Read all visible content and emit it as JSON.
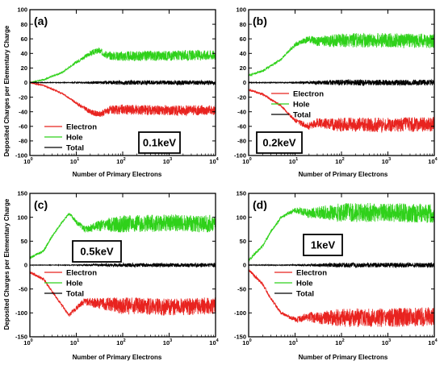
{
  "figure": {
    "ylabel": "Deposited Charges per Elementary Charge",
    "xlabel": "Number of Primary Electrons"
  },
  "colors": {
    "electron": "#e8231f",
    "hole": "#2fd11a",
    "total": "#000000"
  },
  "chart_data": [
    {
      "type": "line",
      "panel_label": "(a)",
      "energy_label": "0.1keV",
      "xscale": "log",
      "xlim": [
        1,
        10000
      ],
      "ylim": [
        -100,
        100
      ],
      "x_ticks": [
        "10^0",
        "10^1",
        "10^2",
        "10^3",
        "10^4"
      ],
      "y_ticks": [
        -100,
        -80,
        -60,
        -40,
        -20,
        0,
        20,
        40,
        60,
        80,
        100
      ],
      "legend": [
        "Electron",
        "Hole",
        "Total"
      ],
      "legend_position": "bottom-left",
      "series": [
        {
          "name": "Electron",
          "x": [
            1,
            2,
            5,
            10,
            20,
            30,
            50,
            100,
            1000,
            10000
          ],
          "y": [
            0,
            -4,
            -15,
            -28,
            -40,
            -44,
            -38,
            -37,
            -38,
            -38
          ],
          "noise": 7
        },
        {
          "name": "Hole",
          "x": [
            1,
            2,
            5,
            10,
            20,
            30,
            50,
            100,
            1000,
            10000
          ],
          "y": [
            0,
            4,
            14,
            28,
            40,
            44,
            37,
            36,
            37,
            38
          ],
          "noise": 7
        },
        {
          "name": "Total",
          "x": [
            1,
            10,
            100,
            1000,
            10000
          ],
          "y": [
            0,
            0,
            0,
            0,
            0
          ],
          "noise": 3
        }
      ]
    },
    {
      "type": "line",
      "panel_label": "(b)",
      "energy_label": "0.2keV",
      "xscale": "log",
      "xlim": [
        1,
        10000
      ],
      "ylim": [
        -100,
        100
      ],
      "x_ticks": [
        "10^0",
        "10^1",
        "10^2",
        "10^3",
        "10^4"
      ],
      "y_ticks": [
        -100,
        -80,
        -60,
        -40,
        -20,
        0,
        20,
        40,
        60,
        80,
        100
      ],
      "legend": [
        "Electron",
        "Hole",
        "Total"
      ],
      "legend_position": "center-right",
      "series": [
        {
          "name": "Electron",
          "x": [
            1,
            2,
            5,
            10,
            20,
            30,
            100,
            1000,
            10000
          ],
          "y": [
            -10,
            -16,
            -32,
            -52,
            -60,
            -55,
            -58,
            -58,
            -57
          ],
          "noise": 10
        },
        {
          "name": "Hole",
          "x": [
            1,
            2,
            5,
            10,
            20,
            30,
            100,
            1000,
            10000
          ],
          "y": [
            10,
            16,
            32,
            52,
            60,
            56,
            58,
            58,
            57
          ],
          "noise": 10
        },
        {
          "name": "Total",
          "x": [
            1,
            10,
            100,
            1000,
            10000
          ],
          "y": [
            0,
            0,
            0,
            0,
            0
          ],
          "noise": 4
        }
      ]
    },
    {
      "type": "line",
      "panel_label": "(c)",
      "energy_label": "0.5keV",
      "xscale": "log",
      "xlim": [
        1,
        10000
      ],
      "ylim": [
        -150,
        150
      ],
      "x_ticks": [
        "10^0",
        "10^1",
        "10^2",
        "10^3",
        "10^4"
      ],
      "y_ticks": [
        -150,
        -100,
        -50,
        0,
        50,
        100,
        150
      ],
      "legend": [
        "Electron",
        "Hole",
        "Total"
      ],
      "legend_position": "center",
      "series": [
        {
          "name": "Electron",
          "x": [
            1,
            2,
            3,
            5,
            7,
            10,
            15,
            20,
            30,
            100,
            1000,
            10000
          ],
          "y": [
            -15,
            -30,
            -55,
            -85,
            -105,
            -90,
            -75,
            -78,
            -80,
            -85,
            -88,
            -85
          ],
          "noise": 18
        },
        {
          "name": "Hole",
          "x": [
            1,
            2,
            3,
            5,
            7,
            10,
            15,
            20,
            30,
            100,
            1000,
            10000
          ],
          "y": [
            15,
            30,
            60,
            90,
            108,
            90,
            75,
            78,
            82,
            86,
            88,
            86
          ],
          "noise": 18
        },
        {
          "name": "Total",
          "x": [
            1,
            10,
            100,
            1000,
            10000
          ],
          "y": [
            0,
            0,
            0,
            0,
            0
          ],
          "noise": 4
        }
      ]
    },
    {
      "type": "line",
      "panel_label": "(d)",
      "energy_label": "1keV",
      "xscale": "log",
      "xlim": [
        1,
        10000
      ],
      "ylim": [
        -150,
        150
      ],
      "x_ticks": [
        "10^0",
        "10^1",
        "10^2",
        "10^3",
        "10^4"
      ],
      "y_ticks": [
        -150,
        -100,
        -50,
        0,
        50,
        100,
        150
      ],
      "legend": [
        "Electron",
        "Hole",
        "Total"
      ],
      "legend_position": "center",
      "series": [
        {
          "name": "Electron",
          "x": [
            1,
            2,
            3,
            5,
            10,
            20,
            30,
            100,
            1000,
            10000
          ],
          "y": [
            -10,
            -40,
            -70,
            -100,
            -115,
            -108,
            -110,
            -110,
            -110,
            -108
          ],
          "noise": 20
        },
        {
          "name": "Hole",
          "x": [
            1,
            2,
            3,
            5,
            10,
            20,
            30,
            100,
            1000,
            10000
          ],
          "y": [
            10,
            40,
            70,
            100,
            115,
            108,
            110,
            110,
            110,
            108
          ],
          "noise": 20
        },
        {
          "name": "Total",
          "x": [
            1,
            10,
            100,
            1000,
            10000
          ],
          "y": [
            0,
            0,
            0,
            0,
            0
          ],
          "noise": 5
        }
      ]
    }
  ]
}
